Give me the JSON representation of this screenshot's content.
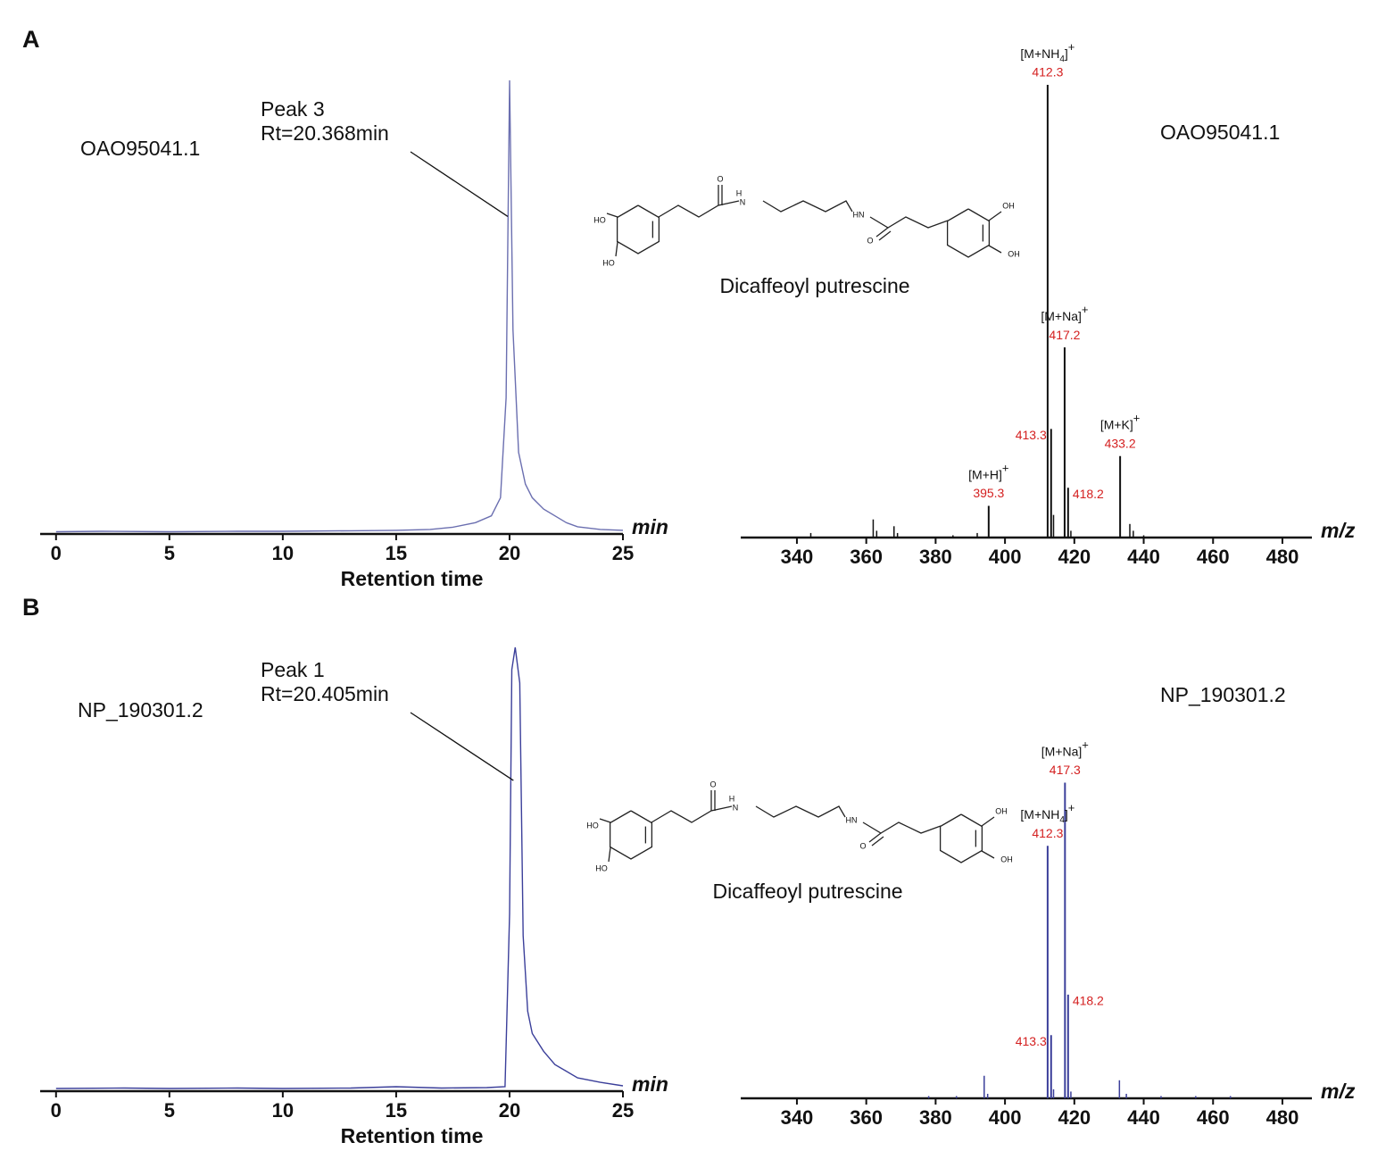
{
  "panels": [
    "A",
    "B"
  ],
  "chart_data": [
    {
      "type": "line",
      "sample": "OAO95041.1",
      "annotation": [
        "Peak 3",
        "Rt=20.368min"
      ],
      "xlabel": "Retention time",
      "x_unit": "min",
      "color": "#6b6fb0",
      "x": [
        0,
        2,
        5,
        8,
        10,
        13,
        15,
        16.5,
        17.5,
        18.5,
        19.2,
        19.6,
        19.85,
        20,
        20.15,
        20.4,
        20.7,
        21,
        21.5,
        22,
        22.5,
        23,
        24,
        25
      ],
      "values": [
        0.5,
        0.6,
        0.5,
        0.6,
        0.6,
        0.7,
        0.8,
        1,
        1.5,
        2.5,
        4,
        8,
        30,
        100,
        45,
        18,
        11,
        8,
        5.5,
        4,
        2.5,
        1.6,
        1,
        0.8
      ],
      "xlim": [
        -0.7,
        25
      ],
      "ylim": [
        0,
        100
      ],
      "xticks": [
        0,
        5,
        10,
        15,
        20,
        25
      ]
    },
    {
      "type": "stem",
      "sample": "OAO95041.1",
      "x_unit": "m/z",
      "color": "#111111",
      "label_color": "#d42020",
      "structure": {
        "name": "Dicaffeoyl putrescine",
        "atoms": [
          "HO",
          "HO",
          "O",
          "H",
          "N",
          "HN",
          "O",
          "OH",
          "OH"
        ]
      },
      "peaks": [
        {
          "x": 412.3,
          "value": 100,
          "ion": "[M+NH4]+"
        },
        {
          "x": 417.2,
          "value": 42,
          "ion": "[M+Na]+"
        },
        {
          "x": 413.3,
          "value": 24,
          "ion": null
        },
        {
          "x": 433.2,
          "value": 18,
          "ion": "[M+K]+"
        },
        {
          "x": 418.2,
          "value": 11,
          "ion": null
        },
        {
          "x": 395.3,
          "value": 7,
          "ion": "[M+H]+"
        }
      ],
      "minor": {
        "x": [
          344,
          362,
          363,
          368,
          369,
          385,
          392,
          414,
          419,
          436,
          437,
          440
        ],
        "values": [
          1,
          4,
          1.5,
          2.5,
          1,
          0.5,
          1,
          5,
          1.5,
          3,
          1.5,
          0.5
        ]
      },
      "xlim": [
        323.8,
        488.5
      ],
      "ylim": [
        0,
        100
      ],
      "xticks": [
        340,
        360,
        380,
        400,
        420,
        440,
        460,
        480
      ]
    },
    {
      "type": "line",
      "sample": "NP_190301.2",
      "annotation": [
        "Peak 1",
        "Rt=20.405min"
      ],
      "xlabel": "Retention time",
      "x_unit": "min",
      "color": "#3b3f9a",
      "x": [
        0,
        3,
        5,
        8,
        10,
        13,
        15,
        17,
        19,
        19.8,
        20,
        20.1,
        20.25,
        20.45,
        20.6,
        20.8,
        21,
        21.5,
        22,
        22.5,
        23,
        24,
        25
      ],
      "values": [
        0.6,
        0.7,
        0.6,
        0.7,
        0.6,
        0.7,
        1,
        0.7,
        0.8,
        1,
        40,
        95,
        100,
        92,
        35,
        18,
        13,
        9,
        6,
        4.5,
        3,
        2,
        1.2
      ],
      "xlim": [
        -0.7,
        25
      ],
      "ylim": [
        0,
        100
      ],
      "xticks": [
        0,
        5,
        10,
        15,
        20,
        25
      ]
    },
    {
      "type": "stem",
      "sample": "NP_190301.2",
      "x_unit": "m/z",
      "color": "#3b3f9a",
      "label_color": "#d42020",
      "structure": {
        "name": "Dicaffeoyl putrescine",
        "atoms": [
          "HO",
          "HO",
          "O",
          "H",
          "N",
          "HN",
          "O",
          "OH",
          "OH"
        ]
      },
      "peaks": [
        {
          "x": 417.3,
          "value": 70,
          "ion": "[M+Na]+"
        },
        {
          "x": 412.3,
          "value": 56,
          "ion": "[M+NH4]+"
        },
        {
          "x": 418.2,
          "value": 23,
          "ion": null
        },
        {
          "x": 413.3,
          "value": 14,
          "ion": null
        }
      ],
      "minor": {
        "x": [
          378,
          386,
          394,
          395,
          414,
          419,
          433,
          435,
          445,
          455,
          465
        ],
        "values": [
          0.5,
          0.5,
          5,
          1,
          2,
          1.5,
          4,
          1,
          0.5,
          0.5,
          0.5
        ]
      },
      "xlim": [
        323.8,
        488.5
      ],
      "ylim": [
        0,
        100
      ],
      "xticks": [
        340,
        360,
        380,
        400,
        420,
        440,
        460,
        480
      ]
    }
  ]
}
